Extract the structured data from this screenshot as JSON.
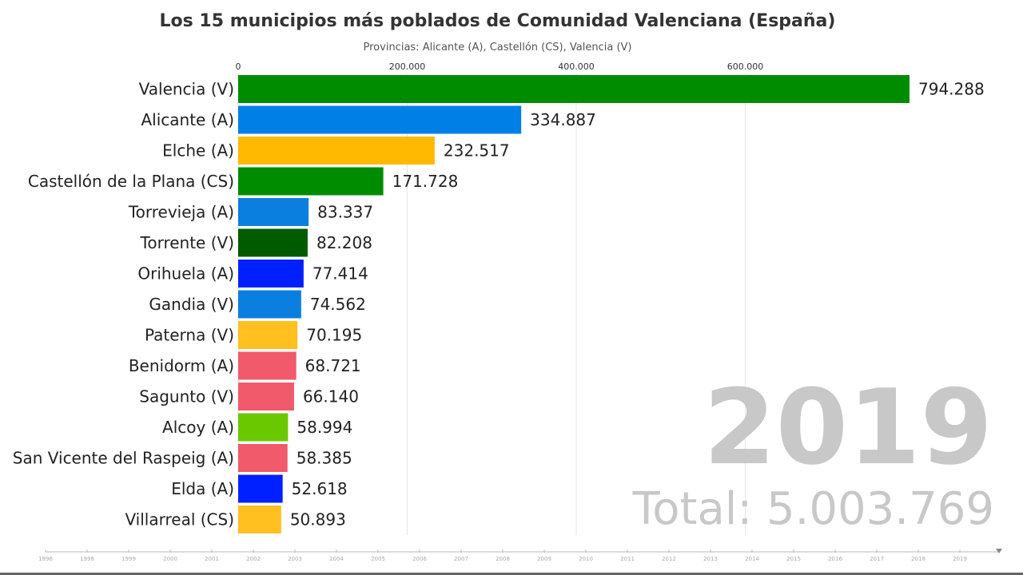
{
  "chart_data": {
    "type": "bar",
    "orientation": "horizontal",
    "title": "Los 15 municipios más poblados de Comunidad Valenciana (España)",
    "subtitle": "Provincias: Alicante (A), Castellón (CS), Valencia (V)",
    "categories": [
      "Valencia (V)",
      "Alicante (A)",
      "Elche (A)",
      "Castellón de la Plana (CS)",
      "Torrevieja (A)",
      "Torrente (V)",
      "Orihuela (A)",
      "Gandia (V)",
      "Paterna (V)",
      "Benidorm (A)",
      "Sagunto (V)",
      "Alcoy (A)",
      "San Vicente del Raspeig (A)",
      "Elda (A)",
      "Villarreal (CS)"
    ],
    "values": [
      794288,
      334887,
      232517,
      171728,
      83337,
      82208,
      77414,
      74562,
      70195,
      68721,
      66140,
      58994,
      58385,
      52618,
      50893
    ],
    "value_labels": [
      "794.288",
      "334.887",
      "232.517",
      "171.728",
      "83.337",
      "82.208",
      "77.414",
      "74.562",
      "70.195",
      "68.721",
      "66.140",
      "58.994",
      "58.385",
      "52.618",
      "50.893"
    ],
    "colors": [
      "#008c00",
      "#0080e6",
      "#ffb900",
      "#008c00",
      "#0a7fe0",
      "#005a00",
      "#0020ff",
      "#0a7fe0",
      "#ffc020",
      "#f05a6a",
      "#f05a6a",
      "#6ac800",
      "#f05a6a",
      "#0020ff",
      "#ffc020"
    ],
    "xlim": [
      0,
      794288
    ],
    "x_ticks": [
      0,
      200000,
      400000,
      600000
    ],
    "x_tick_labels": [
      "0",
      "200.000",
      "400.000",
      "600.000"
    ],
    "grid": true,
    "year": "2019",
    "total_label": "Total: 5.003.769",
    "timeline": [
      "1996",
      "1998",
      "1999",
      "2000",
      "2001",
      "2002",
      "2003",
      "2004",
      "2005",
      "2006",
      "2007",
      "2008",
      "2009",
      "2010",
      "2011",
      "2012",
      "2013",
      "2014",
      "2015",
      "2016",
      "2017",
      "2018",
      "2019"
    ]
  }
}
